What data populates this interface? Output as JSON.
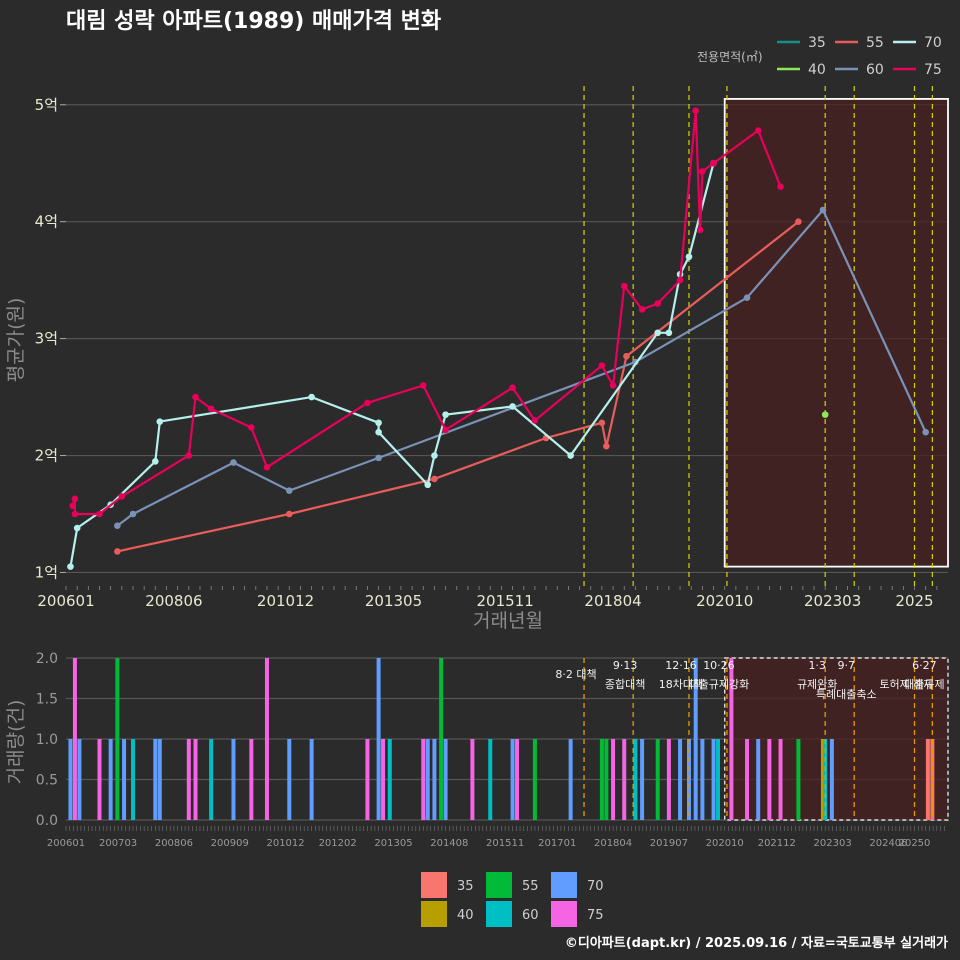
{
  "title": "대림 성락 아파트(1989) 매매가격 변화",
  "footer": "©디아파트(dapt.kr) / 2025.09.16 / 자료=국토교통부 실거래가",
  "colors": {
    "35": "#f8766d",
    "40": "#b79f00",
    "55": "#00ba38",
    "60": "#00bfc4",
    "70": "#619cff",
    "75": "#f564e3"
  },
  "chart_data": [
    {
      "type": "line",
      "title": "대림 성락 아파트(1989) 매매가격 변화",
      "xlabel": "거래년월",
      "ylabel": "평균가(원)",
      "x_ticks": [
        "200601",
        "200806",
        "201012",
        "201305",
        "201511",
        "201804",
        "202010",
        "202303",
        "2025"
      ],
      "y_ticks": [
        {
          "value": 1,
          "label": "1억"
        },
        {
          "value": 2,
          "label": "2억"
        },
        {
          "value": 3,
          "label": "3억"
        },
        {
          "value": 4,
          "label": "4억"
        },
        {
          "value": 5,
          "label": "5억"
        }
      ],
      "ylim": [
        0.85,
        5.4
      ],
      "legend_title": "전용면적(㎡)",
      "legend_position": "top-right",
      "grid": true,
      "highlight_range": [
        2020.75,
        2025.75
      ],
      "series": [
        {
          "name": "35",
          "color": "#14918e",
          "points": []
        },
        {
          "name": "40",
          "color": "#8fe85a",
          "points": [
            [
              2023.0,
              2.35
            ]
          ]
        },
        {
          "name": "55",
          "color": "#e85d5b",
          "points": [
            [
              2007.15,
              1.18
            ],
            [
              2011.0,
              1.5
            ],
            [
              2014.25,
              1.8
            ],
            [
              2016.75,
              2.15
            ],
            [
              2018.0,
              2.28
            ],
            [
              2018.1,
              2.08
            ],
            [
              2018.55,
              2.85
            ],
            [
              2022.4,
              4.0
            ]
          ]
        },
        {
          "name": "60",
          "color": "#7b92b8",
          "points": [
            [
              2007.15,
              1.4
            ],
            [
              2007.5,
              1.5
            ],
            [
              2009.75,
              1.94
            ],
            [
              2011.0,
              1.7
            ],
            [
              2013.0,
              1.98
            ],
            [
              2018.75,
              2.8
            ],
            [
              2021.25,
              3.35
            ],
            [
              2022.95,
              4.1
            ],
            [
              2025.25,
              2.2
            ]
          ]
        },
        {
          "name": "70",
          "color": "#b5f0ec",
          "points": [
            [
              2006.1,
              1.05
            ],
            [
              2006.25,
              1.38
            ],
            [
              2007.0,
              1.58
            ],
            [
              2008.0,
              1.95
            ],
            [
              2008.1,
              2.29
            ],
            [
              2011.5,
              2.5
            ],
            [
              2013.0,
              2.28
            ],
            [
              2013.0,
              2.2
            ],
            [
              2014.1,
              1.75
            ],
            [
              2014.25,
              2.0
            ],
            [
              2014.5,
              2.35
            ],
            [
              2016.0,
              2.42
            ],
            [
              2017.3,
              2.0
            ],
            [
              2019.25,
              3.05
            ],
            [
              2019.5,
              3.05
            ],
            [
              2019.75,
              3.55
            ],
            [
              2019.95,
              3.7
            ],
            [
              2020.5,
              4.5
            ]
          ]
        },
        {
          "name": "75",
          "color": "#e8005a",
          "points": [
            [
              2006.2,
              1.63
            ],
            [
              2006.2,
              1.5
            ],
            [
              2006.15,
              1.57
            ],
            [
              2006.75,
              1.5
            ],
            [
              2007.25,
              1.65
            ],
            [
              2008.75,
              2.0
            ],
            [
              2008.9,
              2.5
            ],
            [
              2009.25,
              2.4
            ],
            [
              2010.15,
              2.24
            ],
            [
              2010.5,
              1.9
            ],
            [
              2012.75,
              2.45
            ],
            [
              2014.0,
              2.6
            ],
            [
              2014.5,
              2.22
            ],
            [
              2016.0,
              2.58
            ],
            [
              2016.5,
              2.3
            ],
            [
              2018.0,
              2.77
            ],
            [
              2018.25,
              2.6
            ],
            [
              2018.5,
              3.45
            ],
            [
              2018.9,
              3.25
            ],
            [
              2019.25,
              3.3
            ],
            [
              2019.75,
              3.5
            ],
            [
              2020.25,
              4.43
            ],
            [
              2020.5,
              4.5
            ],
            [
              2021.5,
              4.78
            ],
            [
              2022.0,
              4.3
            ],
            [
              2020.1,
              4.95
            ],
            [
              2020.2,
              3.93
            ]
          ]
        }
      ],
      "policy_lines": [
        2017.6,
        2018.7,
        2019.95,
        2020.8,
        2023.0,
        2023.65,
        2025.0,
        2025.4
      ]
    },
    {
      "type": "bar",
      "xlabel": "",
      "ylabel": "거래량(건)",
      "y_ticks": [
        0,
        0.5,
        1.0,
        1.5,
        2.0
      ],
      "y_tick_labels": [
        "0.0",
        "0.5",
        "1.0",
        "1.5",
        "2.0"
      ],
      "ylim": [
        0,
        2.0
      ],
      "x_ticks": [
        "200601",
        "200703",
        "200806",
        "200909",
        "201012",
        "201202",
        "201305",
        "201408",
        "201511",
        "201701",
        "201804",
        "201907",
        "202010",
        "202112",
        "202303",
        "202406",
        "20250"
      ],
      "legend_position": "bottom",
      "highlight_range": [
        2020.75,
        2025.75
      ],
      "policy_markers": [
        {
          "x": 2017.6,
          "label": "8·2 대책",
          "label2": ""
        },
        {
          "x": 2018.7,
          "label": "9·13",
          "label2": "종합대책"
        },
        {
          "x": 2019.95,
          "label": "12·16",
          "label2": "18차대책"
        },
        {
          "x": 2020.8,
          "label": "10·26",
          "label2": "대출규제강화"
        },
        {
          "x": 2023.0,
          "label": "1·3",
          "label2": "규제완화"
        },
        {
          "x": 2023.65,
          "label": "9·7",
          "label2": "특례대출축소"
        },
        {
          "x": 2025.0,
          "label": "",
          "label2": "토허제 해제"
        },
        {
          "x": 2025.4,
          "label": "6·27",
          "label2": "대출규제"
        }
      ],
      "bars": [
        {
          "x": 2006.1,
          "v": 1,
          "s": "70"
        },
        {
          "x": 2006.2,
          "v": 2,
          "s": "75"
        },
        {
          "x": 2006.3,
          "v": 1,
          "s": "70"
        },
        {
          "x": 2006.75,
          "v": 1,
          "s": "75"
        },
        {
          "x": 2007.0,
          "v": 1,
          "s": "70"
        },
        {
          "x": 2007.15,
          "v": 2,
          "s": "55"
        },
        {
          "x": 2007.3,
          "v": 1,
          "s": "70"
        },
        {
          "x": 2007.5,
          "v": 1,
          "s": "60"
        },
        {
          "x": 2008.0,
          "v": 1,
          "s": "70"
        },
        {
          "x": 2008.1,
          "v": 1,
          "s": "70"
        },
        {
          "x": 2008.75,
          "v": 1,
          "s": "75"
        },
        {
          "x": 2008.9,
          "v": 1,
          "s": "75"
        },
        {
          "x": 2009.25,
          "v": 1,
          "s": "60"
        },
        {
          "x": 2009.75,
          "v": 1,
          "s": "70"
        },
        {
          "x": 2010.15,
          "v": 1,
          "s": "75"
        },
        {
          "x": 2010.5,
          "v": 2,
          "s": "75"
        },
        {
          "x": 2011.0,
          "v": 1,
          "s": "70"
        },
        {
          "x": 2011.5,
          "v": 1,
          "s": "70"
        },
        {
          "x": 2012.75,
          "v": 1,
          "s": "75"
        },
        {
          "x": 2013.0,
          "v": 2,
          "s": "70"
        },
        {
          "x": 2013.1,
          "v": 1,
          "s": "75"
        },
        {
          "x": 2013.25,
          "v": 1,
          "s": "60"
        },
        {
          "x": 2014.0,
          "v": 1,
          "s": "75"
        },
        {
          "x": 2014.1,
          "v": 1,
          "s": "70"
        },
        {
          "x": 2014.25,
          "v": 1,
          "s": "70"
        },
        {
          "x": 2014.4,
          "v": 2,
          "s": "55"
        },
        {
          "x": 2014.5,
          "v": 1,
          "s": "70"
        },
        {
          "x": 2015.1,
          "v": 1,
          "s": "75"
        },
        {
          "x": 2015.5,
          "v": 1,
          "s": "60"
        },
        {
          "x": 2016.0,
          "v": 1,
          "s": "70"
        },
        {
          "x": 2016.1,
          "v": 1,
          "s": "75"
        },
        {
          "x": 2016.5,
          "v": 1,
          "s": "55"
        },
        {
          "x": 2017.3,
          "v": 1,
          "s": "70"
        },
        {
          "x": 2018.0,
          "v": 1,
          "s": "55"
        },
        {
          "x": 2018.1,
          "v": 1,
          "s": "55"
        },
        {
          "x": 2018.25,
          "v": 1,
          "s": "75"
        },
        {
          "x": 2018.5,
          "v": 1,
          "s": "75"
        },
        {
          "x": 2018.75,
          "v": 1,
          "s": "60"
        },
        {
          "x": 2018.9,
          "v": 1,
          "s": "70"
        },
        {
          "x": 2019.25,
          "v": 1,
          "s": "55"
        },
        {
          "x": 2019.5,
          "v": 1,
          "s": "75"
        },
        {
          "x": 2019.75,
          "v": 1,
          "s": "70"
        },
        {
          "x": 2019.95,
          "v": 1,
          "s": "70"
        },
        {
          "x": 2020.1,
          "v": 2,
          "s": "70"
        },
        {
          "x": 2020.25,
          "v": 1,
          "s": "70"
        },
        {
          "x": 2020.5,
          "v": 1,
          "s": "70"
        },
        {
          "x": 2020.6,
          "v": 1,
          "s": "60"
        },
        {
          "x": 2020.9,
          "v": 2,
          "s": "75"
        },
        {
          "x": 2021.25,
          "v": 1,
          "s": "75"
        },
        {
          "x": 2021.5,
          "v": 1,
          "s": "70"
        },
        {
          "x": 2021.75,
          "v": 1,
          "s": "75"
        },
        {
          "x": 2022.0,
          "v": 1,
          "s": "75"
        },
        {
          "x": 2022.4,
          "v": 1,
          "s": "55"
        },
        {
          "x": 2022.95,
          "v": 1,
          "s": "40"
        },
        {
          "x": 2023.0,
          "v": 1,
          "s": "60"
        },
        {
          "x": 2023.15,
          "v": 1,
          "s": "70"
        },
        {
          "x": 2025.3,
          "v": 1,
          "s": "35"
        },
        {
          "x": 2025.4,
          "v": 1,
          "s": "35"
        }
      ]
    }
  ]
}
